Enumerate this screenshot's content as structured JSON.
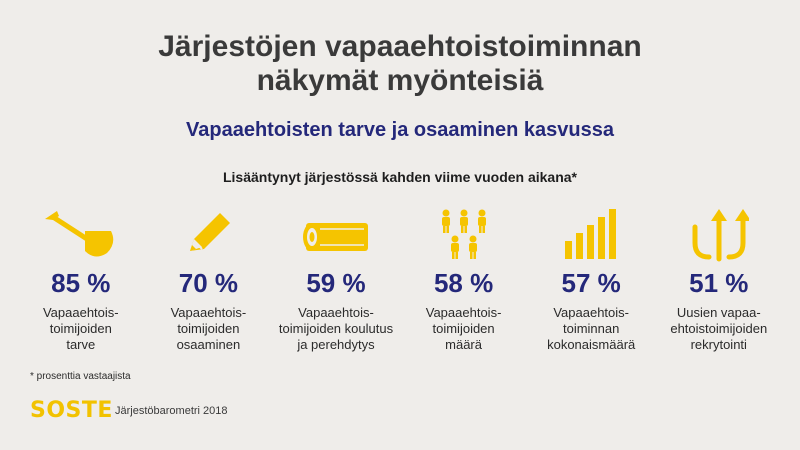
{
  "title": [
    "Järjestöjen vapaaehtoistoiminnan",
    "näkymät myönteisiä"
  ],
  "subtitle": "Vapaaehtoisten tarve ja osaaminen kasvussa",
  "caption": "Lisääntynyt järjestössä kahden viime vuoden aikana*",
  "colors": {
    "accent": "#f5c400",
    "brand_blue": "#24287a",
    "background": "#efedea"
  },
  "stats": [
    {
      "icon": "shovel-icon",
      "value": "85 %",
      "label": [
        "Vapaaehtois-",
        "toimijoiden",
        "tarve"
      ]
    },
    {
      "icon": "pencil-icon",
      "value": "70 %",
      "label": [
        "Vapaaehtois-",
        "toimijoiden",
        "osaaminen"
      ]
    },
    {
      "icon": "book-icon",
      "value": "59 %",
      "label": [
        "Vapaaehtois-",
        "toimijoiden koulutus",
        "ja perehdytys"
      ]
    },
    {
      "icon": "people-icon",
      "value": "58 %",
      "label": [
        "Vapaaehtois-",
        "toimijoiden",
        "määrä"
      ]
    },
    {
      "icon": "bar-chart-icon",
      "value": "57 %",
      "label": [
        "Vapaaehtois-",
        "toiminnan",
        "kokonaismäärä"
      ]
    },
    {
      "icon": "arrows-up-icon",
      "value": "51 %",
      "label": [
        "Uusien vapaa-",
        "ehtoistoimijoiden",
        "rekrytointi"
      ]
    }
  ],
  "footnote": "* prosenttia vastaajista",
  "logo": "SOSTE",
  "source": "Järjestöbarometri 2018"
}
